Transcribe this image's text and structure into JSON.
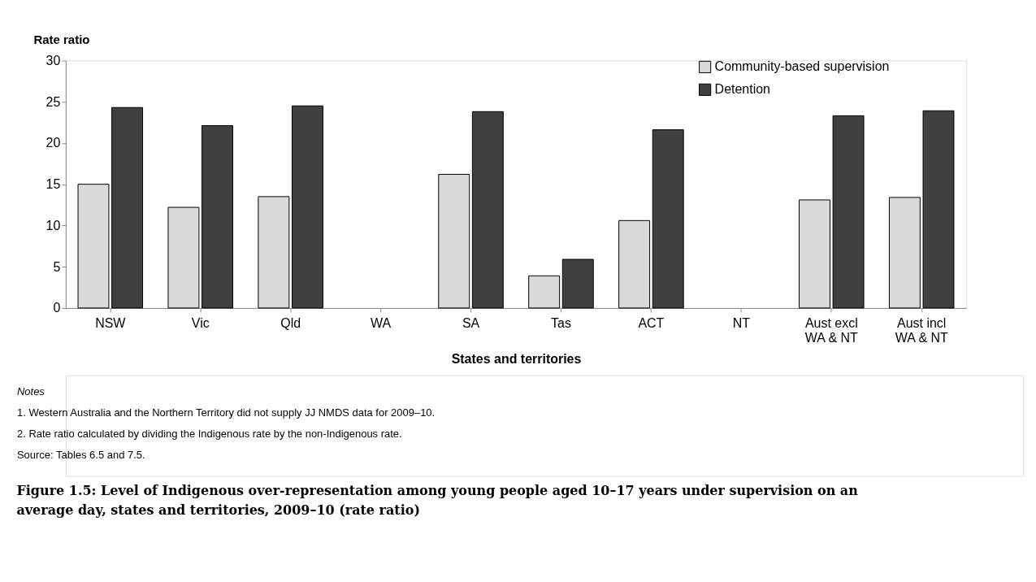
{
  "chart_data": {
    "type": "bar",
    "title": "Figure 1.5: Level of Indigenous over-representation among young people aged 10–17 years under supervision on an average day, states and territories, 2009–10 (rate ratio)",
    "xlabel": "States and territories",
    "ylabel": "Rate ratio",
    "categories": [
      "NSW",
      "Vic",
      "Qld",
      "WA",
      "SA",
      "Tas",
      "ACT",
      "NT",
      "Aust excl\nWA & NT",
      "Aust incl\nWA & NT"
    ],
    "series": [
      {
        "name": "Community-based supervision",
        "color": "#d9d9d9",
        "values": [
          15.0,
          12.2,
          13.5,
          null,
          16.2,
          3.9,
          10.6,
          null,
          13.1,
          13.4
        ]
      },
      {
        "name": "Detention",
        "color": "#404040",
        "values": [
          24.3,
          22.1,
          24.5,
          null,
          23.8,
          5.9,
          21.6,
          null,
          23.3,
          23.9
        ]
      }
    ],
    "ylim": [
      0,
      30
    ],
    "yticks": [
      0,
      5,
      10,
      15,
      20,
      25,
      30
    ],
    "grid": false,
    "legend": "top right",
    "annotations": [
      "Notes",
      "1.     Western Australia and the Northern Territory did not supply JJ NMDS data for 2009–10.",
      "2.     Rate ratio calculated by dividing the Indigenous rate by the non-Indigenous rate.",
      "Source: Tables 6.5 and 7.5."
    ]
  }
}
